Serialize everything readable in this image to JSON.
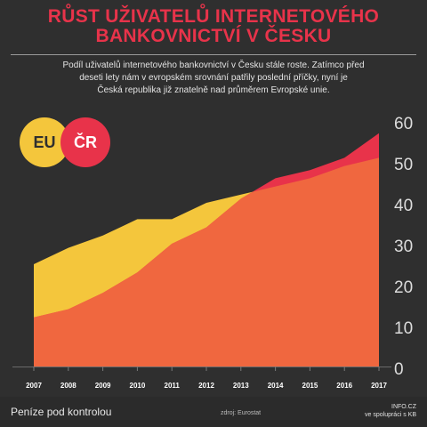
{
  "header": {
    "title_line1": "RŮST UŽIVATELŮ INTERNETOVÉHO",
    "title_line2": "BANKOVNICTVÍ V ČESKU",
    "subtitle_line1": "Podíl uživatelů internetového bankovnictví v Česku stále roste. Zatímco před",
    "subtitle_line2": "deseti lety nám v evropském srovnání patřily poslední příčky, nyní je",
    "subtitle_line3": "Česká republika již znatelně nad  průměrem Evropské unie."
  },
  "badges": {
    "eu": "EU",
    "cr": "ČR"
  },
  "colors": {
    "eu": "#f4c63c",
    "cr": "#e8334a",
    "overlap": "#f0673f",
    "background": "#2f2f2f"
  },
  "chart_data": {
    "type": "area",
    "x": [
      "2007",
      "2008",
      "2009",
      "2010",
      "2011",
      "2012",
      "2013",
      "2014",
      "2015",
      "2016",
      "2017"
    ],
    "series": [
      {
        "name": "EU",
        "values": [
          25,
          29,
          32,
          36,
          36,
          40,
          42,
          44,
          46,
          49,
          51
        ]
      },
      {
        "name": "ČR",
        "values": [
          12,
          14,
          18,
          23,
          30,
          34,
          41,
          46,
          48,
          51,
          57
        ]
      }
    ],
    "y_ticks": [
      0,
      10,
      20,
      30,
      40,
      50,
      60
    ],
    "ylim": [
      0,
      60
    ],
    "grid": false,
    "y_axis_position": "right"
  },
  "footer": {
    "brand": "Peníze pod kontrolou",
    "source": "zdroj: Eurostat",
    "credit_line1": "INFO.CZ",
    "credit_line2": "ve spolupráci s KB"
  }
}
